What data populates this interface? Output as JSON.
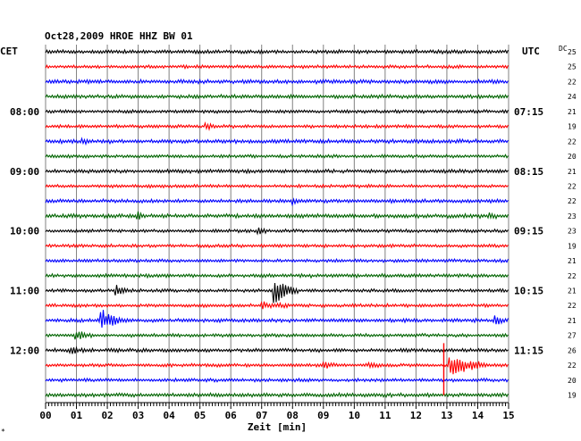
{
  "title": "Oct28,2009   HROE HHZ BW 01",
  "left_axis_label": "CET",
  "right_axis_label": "UTC",
  "dc_label": "DC",
  "xlabel": "Zeit [min]",
  "corner_mark": "*",
  "colors": {
    "cycle": [
      "#000000",
      "#ff0000",
      "#0000ff",
      "#006400"
    ],
    "grid": "#808080"
  },
  "chart_data": {
    "type": "line",
    "title": "Oct28,2009   HROE HHZ BW 01",
    "xlabel": "Zeit [min]",
    "xlim": [
      0,
      15
    ],
    "x_ticks": [
      "00",
      "01",
      "02",
      "03",
      "04",
      "05",
      "06",
      "07",
      "08",
      "09",
      "10",
      "11",
      "12",
      "13",
      "14",
      "15"
    ],
    "grid": true,
    "traces_per_hour": 4,
    "trace_minutes": 15,
    "left_time_labels": [
      {
        "trace": 4,
        "label": "08:00"
      },
      {
        "trace": 8,
        "label": "09:00"
      },
      {
        "trace": 12,
        "label": "10:00"
      },
      {
        "trace": 16,
        "label": "11:00"
      },
      {
        "trace": 20,
        "label": "12:00"
      }
    ],
    "right_time_labels": [
      {
        "trace": 4,
        "label": "07:15"
      },
      {
        "trace": 8,
        "label": "08:15"
      },
      {
        "trace": 12,
        "label": "09:15"
      },
      {
        "trace": 16,
        "label": "10:15"
      },
      {
        "trace": 20,
        "label": "11:15"
      }
    ],
    "dc_offsets": [
      25,
      25,
      22,
      24,
      21,
      19,
      22,
      20,
      21,
      22,
      22,
      23,
      23,
      19,
      21,
      22,
      21,
      22,
      21,
      27,
      26,
      22,
      20,
      19
    ],
    "noise_amplitude": [
      2.2,
      2.0,
      2.4,
      2.2,
      2.0,
      2.0,
      2.4,
      2.0,
      2.2,
      2.0,
      2.2,
      2.4,
      2.0,
      2.0,
      2.0,
      2.2,
      2.0,
      2.0,
      2.2,
      2.0,
      2.2,
      2.0,
      2.0,
      2.4
    ],
    "events": [
      {
        "trace": 5,
        "minute": 5.2,
        "amplitude": 4,
        "duration": 0.3
      },
      {
        "trace": 6,
        "minute": 1.2,
        "amplitude": 3,
        "duration": 0.3
      },
      {
        "trace": 10,
        "minute": 8.0,
        "amplitude": 3,
        "duration": 0.3
      },
      {
        "trace": 11,
        "minute": 3.0,
        "amplitude": 4,
        "duration": 0.2
      },
      {
        "trace": 11,
        "minute": 14.4,
        "amplitude": 3,
        "duration": 0.4
      },
      {
        "trace": 12,
        "minute": 6.9,
        "amplitude": 4,
        "duration": 0.3
      },
      {
        "trace": 16,
        "minute": 2.3,
        "amplitude": 6,
        "duration": 0.5
      },
      {
        "trace": 16,
        "minute": 7.4,
        "amplitude": 16,
        "duration": 0.8
      },
      {
        "trace": 17,
        "minute": 7.0,
        "amplitude": 3,
        "duration": 1.2
      },
      {
        "trace": 18,
        "minute": 1.8,
        "amplitude": 12,
        "duration": 0.8
      },
      {
        "trace": 18,
        "minute": 14.6,
        "amplitude": 4,
        "duration": 0.5
      },
      {
        "trace": 19,
        "minute": 1.0,
        "amplitude": 6,
        "duration": 0.5
      },
      {
        "trace": 20,
        "minute": 0.8,
        "amplitude": 4,
        "duration": 0.5
      },
      {
        "trace": 21,
        "minute": 9.0,
        "amplitude": 4,
        "duration": 0.4
      },
      {
        "trace": 21,
        "minute": 10.5,
        "amplitude": 4,
        "duration": 0.4
      },
      {
        "trace": 21,
        "minute": 13.1,
        "amplitude": 13,
        "duration": 1.2
      }
    ],
    "spike": {
      "trace": 21,
      "minute": 12.9,
      "from_trace": 20,
      "to_trace": 23
    }
  }
}
